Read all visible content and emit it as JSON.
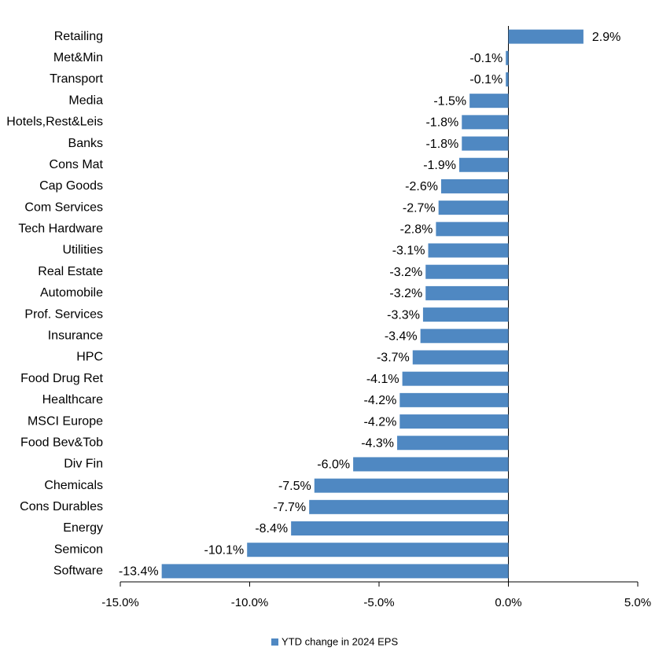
{
  "chart_data": {
    "type": "bar",
    "orientation": "horizontal",
    "categories": [
      "Retailing",
      "Met&Min",
      "Transport",
      "Media",
      "Hotels,Rest&Leis",
      "Banks",
      "Cons Mat",
      "Cap Goods",
      "Com Services",
      "Tech Hardware",
      "Utilities",
      "Real Estate",
      "Automobile",
      "Prof. Services",
      "Insurance",
      "HPC",
      "Food Drug Ret",
      "Healthcare",
      "MSCI Europe",
      "Food Bev&Tob",
      "Div Fin",
      "Chemicals",
      "Cons Durables",
      "Energy",
      "Semicon",
      "Software"
    ],
    "series": [
      {
        "name": "YTD change in 2024 EPS",
        "color": "#4f88c2",
        "values": [
          2.9,
          -0.1,
          -0.1,
          -1.5,
          -1.8,
          -1.8,
          -1.9,
          -2.6,
          -2.7,
          -2.8,
          -3.1,
          -3.2,
          -3.2,
          -3.3,
          -3.4,
          -3.7,
          -4.1,
          -4.2,
          -4.2,
          -4.3,
          -6.0,
          -7.5,
          -7.7,
          -8.4,
          -10.1,
          -13.4
        ],
        "value_labels": [
          "2.9%",
          "-0.1%",
          "-0.1%",
          "-1.5%",
          "-1.8%",
          "-1.8%",
          "-1.9%",
          "-2.6%",
          "-2.7%",
          "-2.8%",
          "-3.1%",
          "-3.2%",
          "-3.2%",
          "-3.3%",
          "-3.4%",
          "-3.7%",
          "-4.1%",
          "-4.2%",
          "-4.2%",
          "-4.3%",
          "-6.0%",
          "-7.5%",
          "-7.7%",
          "-8.4%",
          "-10.1%",
          "-13.4%"
        ]
      }
    ],
    "xlim": [
      -15,
      5
    ],
    "xticks": [
      {
        "value": -15,
        "label": "-15.0%"
      },
      {
        "value": -10,
        "label": "-10.0%"
      },
      {
        "value": -5,
        "label": "-5.0%"
      },
      {
        "value": 0,
        "label": "0.0%"
      },
      {
        "value": 5,
        "label": "5.0%"
      }
    ],
    "legend": "bottom"
  }
}
